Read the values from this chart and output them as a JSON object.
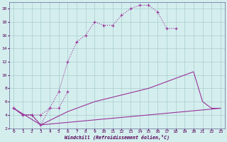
{
  "xlabel": "Windchill (Refroidissement éolien,°C)",
  "bg_color": "#d4eeee",
  "grid_color": "#aacccc",
  "line_color": "#993399",
  "xlim": [
    -0.5,
    23.5
  ],
  "ylim": [
    2,
    21
  ],
  "xticks": [
    0,
    1,
    2,
    3,
    4,
    5,
    6,
    7,
    8,
    9,
    10,
    11,
    12,
    13,
    14,
    15,
    16,
    17,
    18,
    19,
    20,
    21,
    22,
    23
  ],
  "yticks": [
    2,
    4,
    6,
    8,
    10,
    12,
    14,
    16,
    18,
    20
  ],
  "curve1_x": [
    0,
    1,
    2,
    3,
    4,
    5,
    6,
    7,
    8,
    9,
    10,
    11,
    12,
    13,
    14,
    15,
    16,
    17,
    18
  ],
  "curve1_y": [
    5,
    4,
    4,
    4,
    5,
    7.5,
    12,
    15,
    16,
    18,
    17.5,
    17.5,
    19,
    20,
    20.5,
    20.5,
    19.5,
    17,
    17
  ],
  "curve2_x": [
    0,
    1,
    2,
    3,
    4,
    5,
    6
  ],
  "curve2_y": [
    5,
    4,
    4,
    2.5,
    5,
    5,
    7.5
  ],
  "curve3_x": [
    0,
    1,
    2,
    3,
    6,
    9,
    12,
    15,
    18,
    20,
    21,
    22,
    23
  ],
  "curve3_y": [
    5,
    4,
    4,
    2.5,
    4.5,
    6,
    7,
    8,
    9.5,
    10.5,
    6,
    5,
    5
  ],
  "curve4_x": [
    0,
    3,
    23
  ],
  "curve4_y": [
    5,
    2.5,
    5
  ],
  "marker": "+"
}
